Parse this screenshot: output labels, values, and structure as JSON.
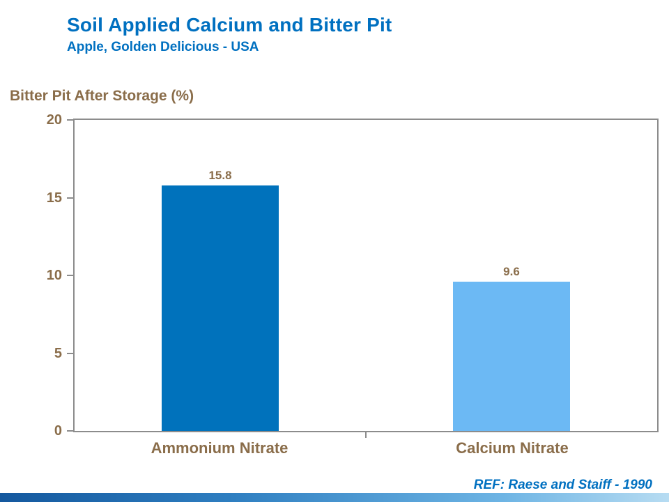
{
  "header": {
    "title": "Soil Applied Calcium and Bitter Pit",
    "subtitle": "Apple, Golden Delicious - USA"
  },
  "chart_data": {
    "type": "bar",
    "title": "Bitter Pit After Storage (%)",
    "categories": [
      "Ammonium Nitrate",
      "Calcium Nitrate"
    ],
    "values": [
      15.8,
      9.6
    ],
    "value_labels": [
      "15.8",
      "9.6"
    ],
    "bar_colors": [
      "#0072bc",
      "#6cb9f4"
    ],
    "ylim": [
      0,
      20
    ],
    "yticks": [
      0,
      5,
      10,
      15,
      20
    ],
    "ylabel": "Bitter Pit After Storage (%)",
    "xlabel": "",
    "grid": false,
    "legend": "none"
  },
  "footer": {
    "reference": "REF: Raese and Staiff - 1990"
  },
  "colors": {
    "title_blue": "#0070c0",
    "label_brown": "#8a6d4a",
    "axis_gray": "#8c8c8c",
    "bar_dark_blue": "#0072bc",
    "bar_light_blue": "#6cb9f4"
  }
}
